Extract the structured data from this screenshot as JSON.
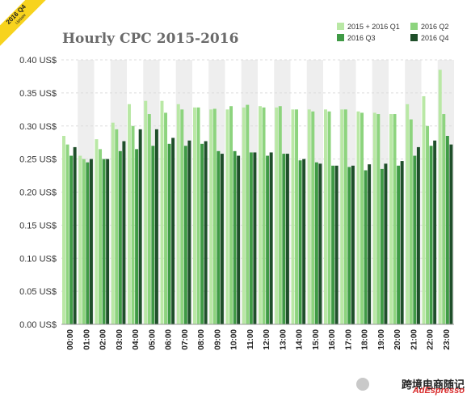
{
  "badge": {
    "line1": "2016 Q4",
    "line2": "Update"
  },
  "watermark": {
    "brand": "AdEspresso",
    "cn_text": "跨境电商随记"
  },
  "colors": {
    "q1": "#b9e8a5",
    "q2": "#8dd47e",
    "q3": "#3f9a45",
    "q4": "#1f4f2a",
    "band": "#eeeeee",
    "grid": "#dcdcdc"
  },
  "chart_data": {
    "type": "bar",
    "title": "Hourly CPC 2015-2016",
    "xlabel": "",
    "ylabel": "",
    "ylim": [
      0,
      0.4
    ],
    "yticks": [
      "0.00 US$",
      "0.05 US$",
      "0.10 US$",
      "0.15 US$",
      "0.20 US$",
      "0.25 US$",
      "0.30 US$",
      "0.35 US$",
      "0.40 US$"
    ],
    "legend_position": "top-right",
    "categories": [
      "00:00",
      "01:00",
      "02:00",
      "03:00",
      "04:00",
      "05:00",
      "06:00",
      "07:00",
      "08:00",
      "09:00",
      "10:00",
      "11:00",
      "12:00",
      "13:00",
      "14:00",
      "15:00",
      "16:00",
      "17:00",
      "18:00",
      "19:00",
      "20:00",
      "21:00",
      "22:00",
      "23:00"
    ],
    "series": [
      {
        "name": "2015 + 2016 Q1",
        "values": [
          0.285,
          0.255,
          0.28,
          0.305,
          0.333,
          0.338,
          0.338,
          0.333,
          0.328,
          0.325,
          0.325,
          0.328,
          0.33,
          0.328,
          0.325,
          0.325,
          0.325,
          0.325,
          0.322,
          0.32,
          0.318,
          0.333,
          0.345,
          0.385
        ]
      },
      {
        "name": "2016 Q2",
        "values": [
          0.272,
          0.25,
          0.265,
          0.295,
          0.3,
          0.318,
          0.32,
          0.325,
          0.328,
          0.326,
          0.33,
          0.332,
          0.328,
          0.33,
          0.325,
          0.322,
          0.322,
          0.325,
          0.32,
          0.318,
          0.318,
          0.31,
          0.3,
          0.318
        ]
      },
      {
        "name": "2016 Q3",
        "values": [
          0.255,
          0.245,
          0.25,
          0.262,
          0.265,
          0.27,
          0.273,
          0.27,
          0.273,
          0.262,
          0.262,
          0.26,
          0.255,
          0.258,
          0.248,
          0.245,
          0.24,
          0.238,
          0.233,
          0.235,
          0.24,
          0.255,
          0.27,
          0.285
        ]
      },
      {
        "name": "2016 Q4",
        "values": [
          0.268,
          0.25,
          0.25,
          0.277,
          0.295,
          0.295,
          0.282,
          0.278,
          0.277,
          0.258,
          0.255,
          0.26,
          0.26,
          0.258,
          0.25,
          0.243,
          0.24,
          0.24,
          0.242,
          0.243,
          0.247,
          0.268,
          0.278,
          0.272
        ]
      }
    ]
  }
}
